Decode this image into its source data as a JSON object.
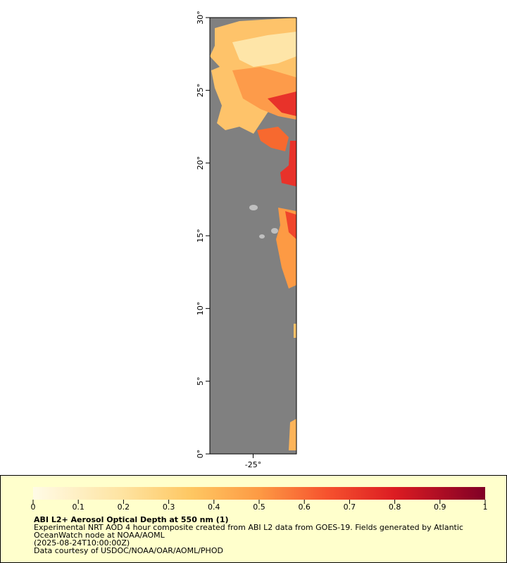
{
  "map": {
    "lat_range": [
      0,
      30
    ],
    "lon_range": [
      -28,
      -22
    ],
    "lat_ticks": [
      {
        "value": 0,
        "label": "0°"
      },
      {
        "value": 5,
        "label": "5°"
      },
      {
        "value": 10,
        "label": "10°"
      },
      {
        "value": 15,
        "label": "15°"
      },
      {
        "value": 20,
        "label": "20°"
      },
      {
        "value": 25,
        "label": "25°"
      },
      {
        "value": 30,
        "label": "30°"
      }
    ],
    "lon_ticks": [
      {
        "value": -25,
        "label": "-25°"
      }
    ]
  },
  "legend": {
    "colorbar_range": [
      0,
      1
    ],
    "colorbar_ticks": [
      0,
      0.1,
      0.2,
      0.3,
      0.4,
      0.5,
      0.6,
      0.7,
      0.8,
      0.9,
      1
    ],
    "title": "ABI L2+ Aerosol Optical Depth at 550 nm (1)",
    "description": "Experimental NRT AOD 4 hour composite created from ABI L2 data from GOES-19. Fields generated by Atlantic OceanWatch node at NOAA/AOML",
    "time": "(2025-08-24T10:00:00Z)",
    "credit": "Data courtesy of USDOC/NOAA/OAR/AOML/PHOD"
  }
}
